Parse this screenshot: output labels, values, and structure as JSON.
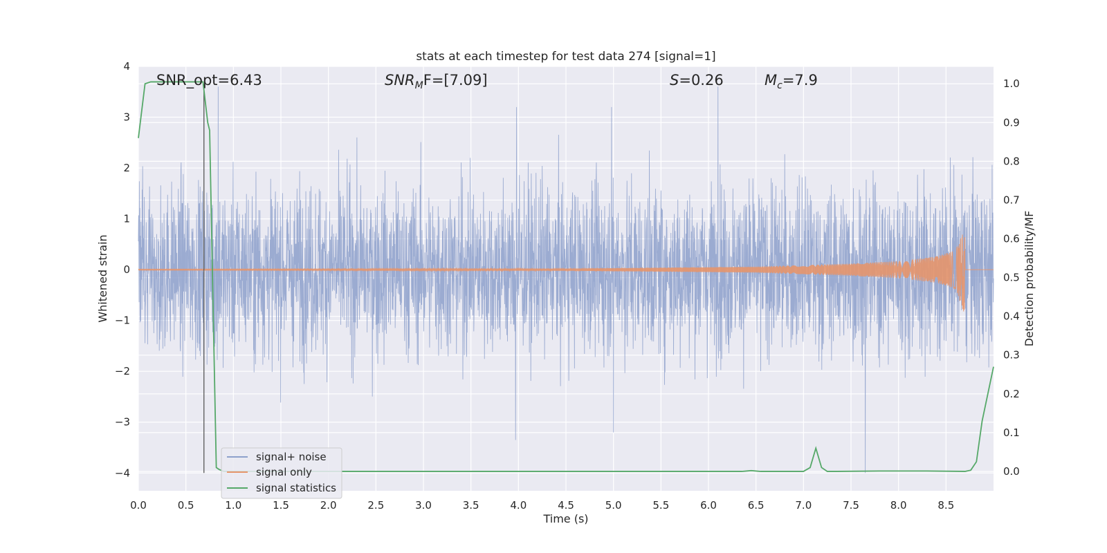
{
  "chart_data": {
    "type": "line",
    "title": "stats at each timestep for test data 274 [signal=1]",
    "xlabel": "Time (s)",
    "ylabel_left": "Whitened strain",
    "ylabel_right": "Detection probability/MF",
    "xlim": [
      0.0,
      9.0
    ],
    "ylim_left": [
      -4.35,
      4.0
    ],
    "ylim_right": [
      -0.05,
      1.045
    ],
    "xticks": [
      "0.0",
      "0.5",
      "1.0",
      "1.5",
      "2.0",
      "2.5",
      "3.0",
      "3.5",
      "4.0",
      "4.5",
      "5.0",
      "5.5",
      "6.0",
      "6.5",
      "7.0",
      "7.5",
      "8.0",
      "8.5"
    ],
    "yticks_left": [
      "4",
      "3",
      "2",
      "1",
      "0",
      "−1",
      "−2",
      "−3",
      "−4"
    ],
    "yticks_right": [
      "1.0",
      "0.9",
      "0.8",
      "0.7",
      "0.6",
      "0.5",
      "0.4",
      "0.3",
      "0.2",
      "0.1",
      "0.0"
    ],
    "grid": true,
    "legend_location": "lower left",
    "annotations": {
      "snr_opt": "SNR_opt=6.43",
      "snr_mf_base": "SNR",
      "snr_mf_sub": "M",
      "snr_mf_rest": "F=[7.09]",
      "s_var": "S",
      "s_rest": "=0.26",
      "mc_var": "M",
      "mc_sub": "c",
      "mc_rest": "=7.9"
    },
    "vertical_marker_x": 0.69,
    "series": [
      {
        "name": "signal+ noise",
        "color": "#8da0cb",
        "envelope_approx": {
          "typical_abs": 1.5,
          "max": 3.65,
          "min": -4.0
        },
        "notable_peaks": [
          [
            0.84,
            3.6
          ],
          [
            3.98,
            3.2
          ],
          [
            4.98,
            3.2
          ],
          [
            6.1,
            3.6
          ],
          [
            3.97,
            -3.35
          ],
          [
            5.0,
            -3.2
          ],
          [
            7.65,
            -4.0
          ]
        ]
      },
      {
        "name": "signal only",
        "color": "#e5956b",
        "chirp_envelope": {
          "t": [
            0.0,
            4.5,
            5.5,
            6.5,
            7.5,
            8.0,
            8.4,
            8.6,
            8.69,
            8.72,
            9.0
          ],
          "amp": [
            0.01,
            0.02,
            0.04,
            0.06,
            0.12,
            0.17,
            0.26,
            0.38,
            0.85,
            0.03,
            0.02
          ]
        }
      },
      {
        "name": "signal statistics",
        "color": "#55a868",
        "x": [
          0.0,
          0.07,
          0.13,
          0.2,
          0.3,
          0.4,
          0.5,
          0.6,
          0.68,
          0.73,
          0.75,
          0.79,
          0.82,
          0.85,
          0.9,
          1.0,
          2.0,
          3.0,
          4.0,
          5.0,
          6.0,
          6.35,
          6.45,
          6.55,
          7.0,
          7.07,
          7.13,
          7.19,
          7.25,
          7.35,
          7.8,
          8.3,
          8.7,
          8.76,
          8.82,
          8.88,
          8.94,
          9.0
        ],
        "y": [
          0.86,
          1.0,
          1.005,
          1.005,
          1.005,
          1.005,
          1.005,
          1.005,
          1.005,
          0.9,
          0.88,
          0.38,
          0.01,
          0.005,
          0.0,
          0.0,
          0.0,
          0.0,
          0.0,
          0.0,
          0.0,
          0.0,
          0.002,
          0.0,
          0.0,
          0.01,
          0.06,
          0.01,
          0.0,
          0.0,
          0.001,
          0.001,
          0.0,
          0.003,
          0.025,
          0.13,
          0.2,
          0.27
        ]
      }
    ]
  }
}
